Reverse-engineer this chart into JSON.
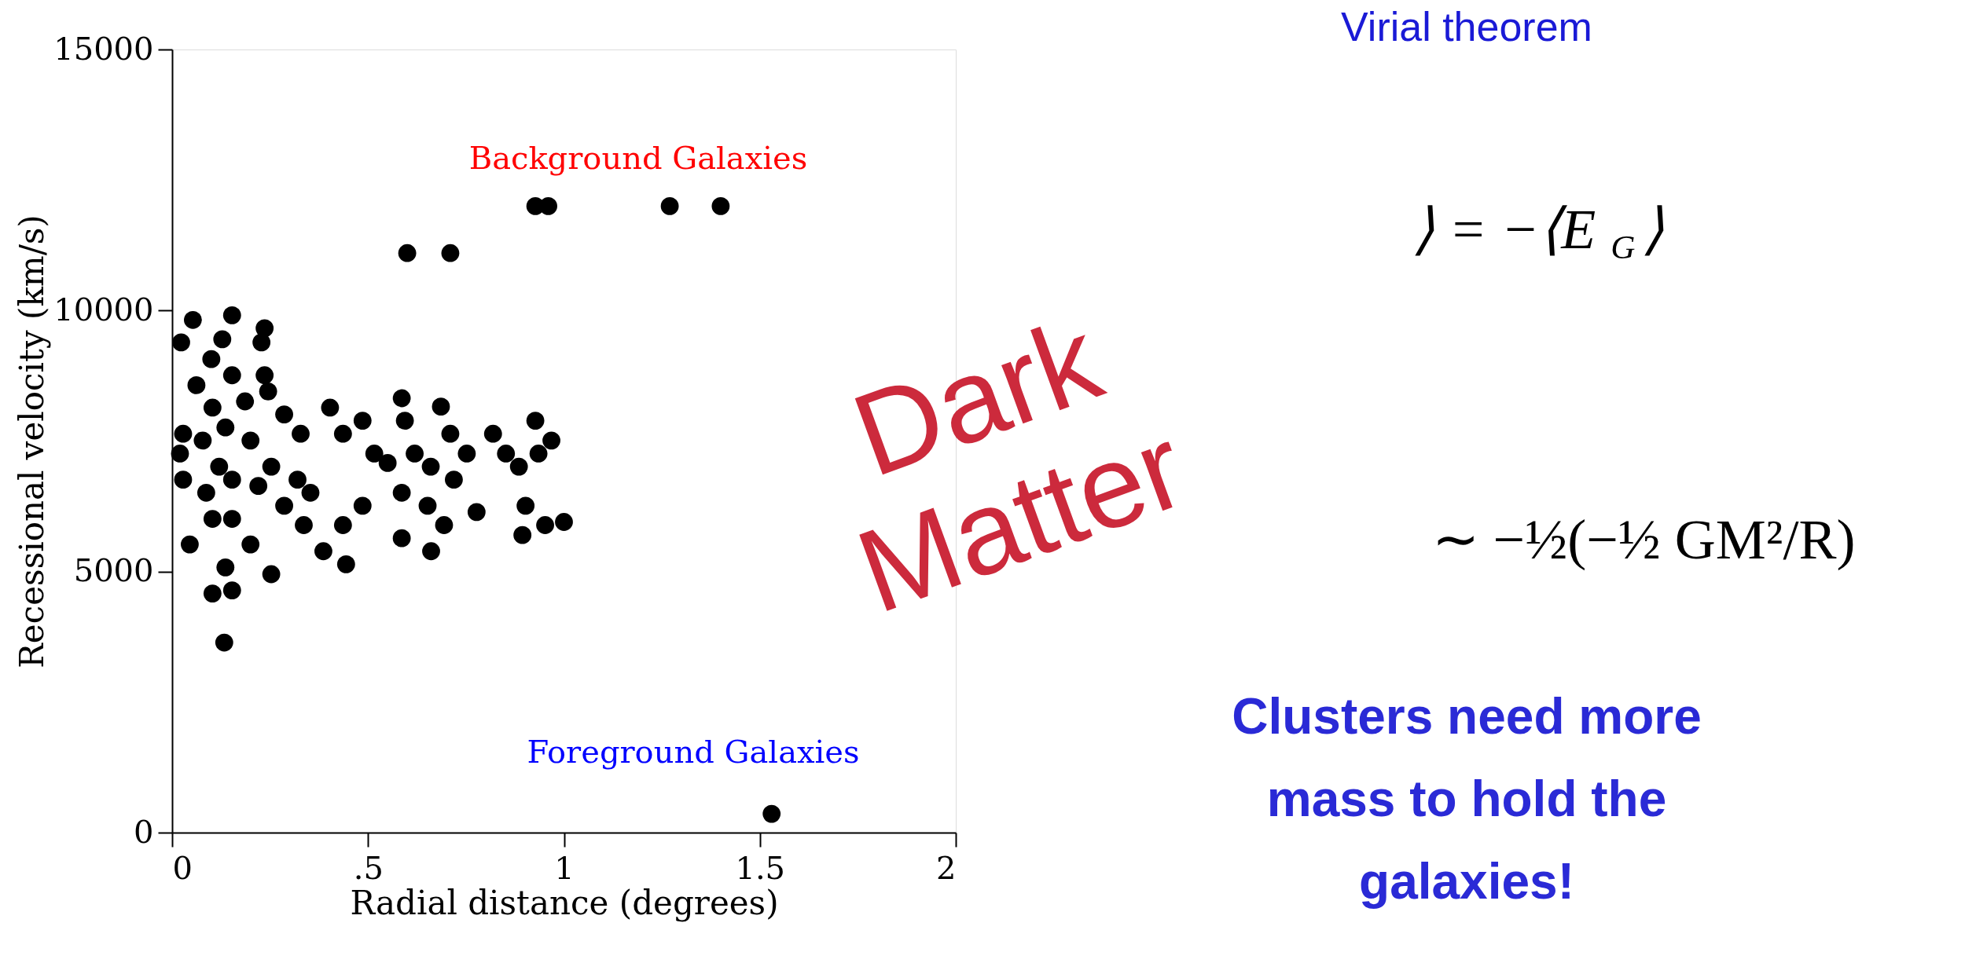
{
  "chart_data": {
    "type": "scatter",
    "xlabel": "Radial distance (degrees)",
    "ylabel": "Recessional velocity (km/s)",
    "xlim": [
      0,
      2
    ],
    "ylim": [
      0,
      15000
    ],
    "xticks": [
      0,
      {
        "value": 0.5,
        "label": ".5"
      },
      1,
      1.5,
      2
    ],
    "yticks": [
      0,
      5000,
      10000,
      15000
    ],
    "grid": false,
    "marker": "circle",
    "series": [
      {
        "color": "#000000",
        "x": [
          0.927,
          0.96,
          1.27,
          1.4,
          0.6,
          0.71,
          1.53,
          0.053,
          0.153,
          0.023,
          0.128,
          0.236,
          0.228,
          0.1,
          0.153,
          0.062,
          0.236,
          0.245,
          0.186,
          0.103,
          0.028,
          0.078,
          0.136,
          0.2,
          0.286,
          0.328,
          0.403,
          0.436,
          0.486,
          0.516,
          0.55,
          0.586,
          0.594,
          0.686,
          0.619,
          0.66,
          0.71,
          0.752,
          0.719,
          0.819,
          0.852,
          0.885,
          0.927,
          0.935,
          0.968,
          0.902,
          0.952,
          1.0,
          0.894,
          0.777,
          0.652,
          0.694,
          0.586,
          0.661,
          0.486,
          0.436,
          0.386,
          0.444,
          0.253,
          0.336,
          0.286,
          0.2,
          0.22,
          0.153,
          0.087,
          0.028,
          0.02,
          0.045,
          0.103,
          0.136,
          0.103,
          0.153,
          0.133,
          0.32,
          0.353,
          0.153,
          0.253,
          0.12,
          0.586
        ],
        "values": [
          12000,
          12000,
          12000,
          12000,
          11100,
          11100,
          360,
          9820,
          9910,
          9390,
          9450,
          9660,
          9390,
          9070,
          8760,
          8570,
          8760,
          8450,
          8260,
          8140,
          7640,
          7510,
          7760,
          7510,
          8010,
          7640,
          8140,
          7640,
          7890,
          7260,
          7080,
          8320,
          7890,
          8160,
          7260,
          7010,
          7640,
          7260,
          6760,
          7640,
          7260,
          7010,
          7890,
          7260,
          7510,
          6260,
          5890,
          5950,
          5700,
          6140,
          6260,
          5890,
          5640,
          5390,
          6260,
          5890,
          5390,
          5140,
          4950,
          5890,
          6260,
          5520,
          6640,
          6760,
          6510,
          6760,
          7260,
          5520,
          6010,
          5080,
          4580,
          4640,
          3640,
          6760,
          6510,
          6010,
          7010,
          7010,
          6510
        ]
      }
    ],
    "annotations": [
      "Background Galaxies",
      "Foreground Galaxies",
      "Virial theorem",
      "⟩ = −⟨E$_{G}$⟩",
      "∼ −½(−½ GM²/R)",
      "Clusters need more mass to hold the galaxies!",
      "Dark Matter"
    ]
  }
}
